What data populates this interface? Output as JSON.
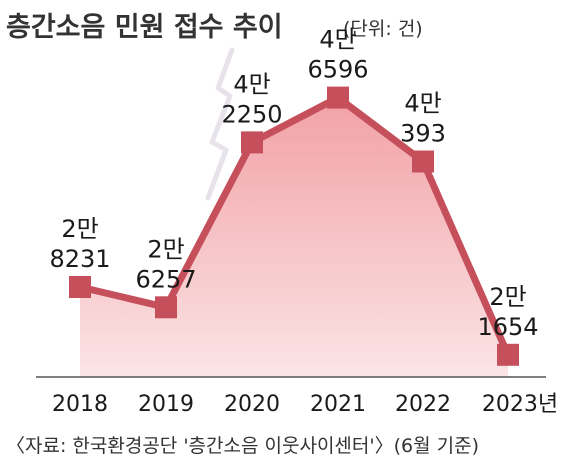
{
  "header": {
    "title": "층간소음 민원 접수 추이",
    "unit_note": "(단위: 건)"
  },
  "footer": {
    "source": "〈자료: 한국환경공단 '층간소음 이웃사이센터'〉(6월 기준)"
  },
  "colors": {
    "line": "#c5505c",
    "marker": "#c5505c",
    "fill_top": "#f2a1a6",
    "fill_bottom": "#fbe4e5",
    "lightning": "#e8e2ea",
    "axis": "#555555"
  },
  "chart_data": {
    "type": "line",
    "title": "층간소음 민원 접수 추이",
    "ylabel": "",
    "xlabel": "",
    "unit": "건",
    "categories": [
      "2018",
      "2019",
      "2020",
      "2021",
      "2022",
      "2023년"
    ],
    "values": [
      28231,
      26257,
      42250,
      46596,
      40393,
      21654
    ],
    "value_labels": [
      [
        "2만",
        "8231"
      ],
      [
        "2만",
        "6257"
      ],
      [
        "4만",
        "2250"
      ],
      [
        "4만",
        "6596"
      ],
      [
        "4만",
        "393"
      ],
      [
        "2만",
        "1654"
      ]
    ],
    "ylim": [
      19500,
      48300
    ],
    "grid": false,
    "legend": "none"
  }
}
